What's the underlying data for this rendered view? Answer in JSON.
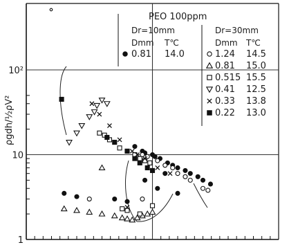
{
  "chart_data": {
    "type": "scatter",
    "title": "PEO  100ppm",
    "ylabel": "ρgdh/½ρV²",
    "xlabel": "",
    "yscale": "log",
    "ylim": [
      1,
      50
    ],
    "xlim": [
      0,
      1
    ],
    "y_ticks": [
      "1",
      "10",
      "10²"
    ],
    "grid": true,
    "legend_groups": [
      {
        "heading": "Dr=10mm",
        "col_headers": [
          "Dmm",
          "T℃"
        ]
      },
      {
        "heading": "Dr=30mm",
        "col_headers": [
          "Dmm",
          "T℃"
        ]
      }
    ],
    "series": [
      {
        "name": "0.81",
        "group": 0,
        "temp": "14.0",
        "marker": "filled-circle",
        "x": [
          0.43,
          0.46,
          0.47,
          0.5,
          0.51,
          0.53,
          0.56,
          0.58,
          0.6,
          0.63,
          0.65,
          0.68,
          0.7,
          0.73,
          0.15,
          0.2,
          0.35,
          0.4,
          0.47,
          0.52,
          0.6,
          0.55
        ],
        "y": [
          12.5,
          11,
          10.5,
          10,
          9.5,
          9,
          8,
          7.5,
          7,
          6.5,
          6,
          5.5,
          5,
          4.5,
          3.5,
          3.2,
          3,
          2.8,
          5,
          4,
          3.5,
          6
        ]
      },
      {
        "name": "1.24",
        "group": 1,
        "temp": "14.5",
        "marker": "open-circle",
        "x": [
          0.46,
          0.48,
          0.52,
          0.55,
          0.58,
          0.6,
          0.63,
          0.65,
          0.7,
          0.72,
          0.46,
          0.5,
          0.25
        ],
        "y": [
          10,
          9.5,
          8.5,
          7.5,
          7,
          6,
          5.5,
          5,
          4,
          3.8,
          3,
          2.5,
          3
        ]
      },
      {
        "name": "0.81",
        "group": 1,
        "temp": "15.0",
        "marker": "open-triangle-up",
        "x": [
          0.15,
          0.2,
          0.25,
          0.3,
          0.35,
          0.38,
          0.4,
          0.42,
          0.44,
          0.46,
          0.48,
          0.5,
          0.3
        ],
        "y": [
          2.3,
          2.2,
          2.1,
          2,
          1.9,
          1.8,
          1.75,
          1.7,
          1.8,
          1.9,
          2,
          2.1,
          7
        ]
      },
      {
        "name": "0.515",
        "group": 1,
        "temp": "15.5",
        "marker": "open-square",
        "x": [
          0.29,
          0.31,
          0.33,
          0.37,
          0.4,
          0.43,
          0.45,
          0.47,
          0.49,
          0.38,
          0.4,
          0.45,
          0.5
        ],
        "y": [
          18,
          17,
          15,
          12,
          11,
          10,
          9,
          8.5,
          8,
          2.3,
          2.2,
          2,
          2.5
        ]
      },
      {
        "name": "0.41",
        "group": 1,
        "temp": "12.5",
        "marker": "open-triangle-down",
        "x": [
          0.17,
          0.2,
          0.22,
          0.25,
          0.27,
          0.28,
          0.3,
          0.32
        ],
        "y": [
          14,
          18,
          22,
          28,
          32,
          38,
          44,
          40
        ]
      },
      {
        "name": "0.33",
        "group": 1,
        "temp": "13.8",
        "marker": "cross",
        "x": [
          0.26,
          0.29,
          0.33,
          0.37,
          0.42,
          0.44,
          0.47,
          0.52,
          0.57,
          0.4
        ],
        "y": [
          40,
          30,
          22,
          15,
          11,
          10,
          9,
          7,
          6,
          2.4
        ]
      },
      {
        "name": "0.22",
        "group": 1,
        "temp": "13.0",
        "marker": "filled-square",
        "x": [
          0.14,
          0.32,
          0.35,
          0.4,
          0.43,
          0.45,
          0.48,
          0.5
        ],
        "y": [
          45,
          16,
          14,
          11,
          9,
          8,
          7,
          6.5
        ]
      }
    ]
  }
}
